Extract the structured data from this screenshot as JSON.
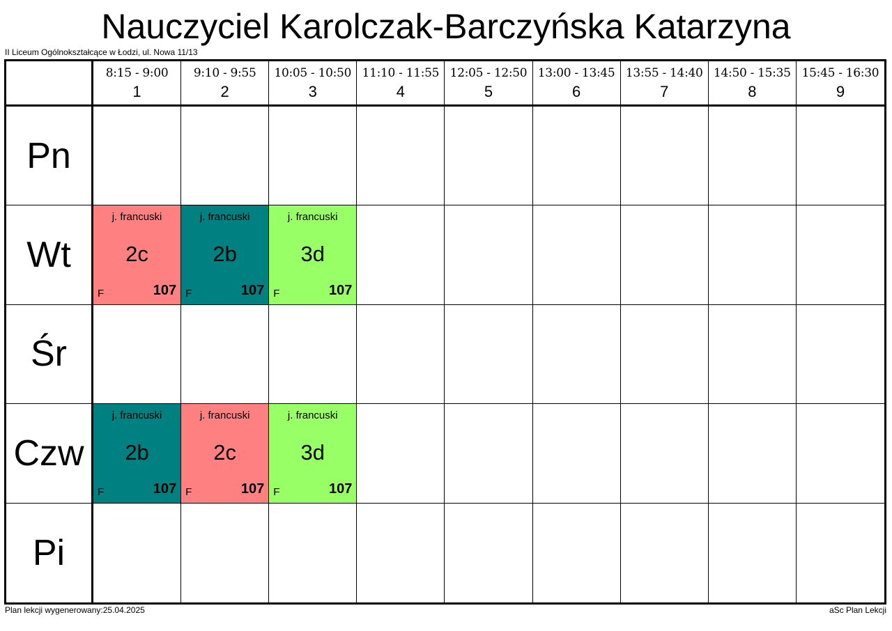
{
  "title": "Nauczyciel Karolczak-Barczyńska Katarzyna",
  "school": "II Liceum Ogólnokształcące w Łodzi, ul. Nowa 11/13",
  "footer": {
    "generated": "Plan lekcji wygenerowany:25.04.2025",
    "app": "aSc Plan Lekcji"
  },
  "colors": {
    "red": "#ff8080",
    "teal": "#008080",
    "green": "#99ff66"
  },
  "periods": [
    {
      "time": "8:15 - 9:00",
      "num": "1"
    },
    {
      "time": "9:10 - 9:55",
      "num": "2"
    },
    {
      "time": "10:05 - 10:50",
      "num": "3"
    },
    {
      "time": "11:10 - 11:55",
      "num": "4"
    },
    {
      "time": "12:05 - 12:50",
      "num": "5"
    },
    {
      "time": "13:00 - 13:45",
      "num": "6"
    },
    {
      "time": "13:55 - 14:40",
      "num": "7"
    },
    {
      "time": "14:50 - 15:35",
      "num": "8"
    },
    {
      "time": "15:45 - 16:30",
      "num": "9"
    }
  ],
  "days": [
    {
      "label": "Pn",
      "lessons": []
    },
    {
      "label": "Wt",
      "lessons": [
        {
          "period": 1,
          "subject": "j. francuski",
          "class": "2c",
          "teacher": "F",
          "room": "107",
          "color": "red"
        },
        {
          "period": 2,
          "subject": "j. francuski",
          "class": "2b",
          "teacher": "F",
          "room": "107",
          "color": "teal"
        },
        {
          "period": 3,
          "subject": "j. francuski",
          "class": "3d",
          "teacher": "F",
          "room": "107",
          "color": "green"
        }
      ]
    },
    {
      "label": "Śr",
      "lessons": []
    },
    {
      "label": "Czw",
      "lessons": [
        {
          "period": 1,
          "subject": "j. francuski",
          "class": "2b",
          "teacher": "F",
          "room": "107",
          "color": "teal"
        },
        {
          "period": 2,
          "subject": "j. francuski",
          "class": "2c",
          "teacher": "F",
          "room": "107",
          "color": "red"
        },
        {
          "period": 3,
          "subject": "j. francuski",
          "class": "3d",
          "teacher": "F",
          "room": "107",
          "color": "green"
        }
      ]
    },
    {
      "label": "Pi",
      "lessons": []
    }
  ]
}
